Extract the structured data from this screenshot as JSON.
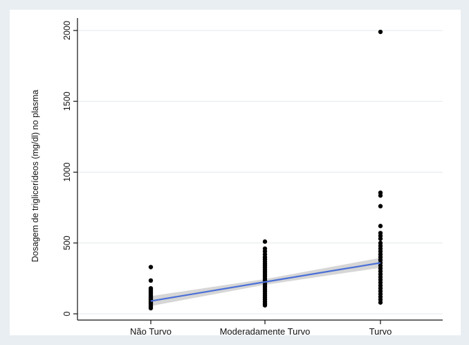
{
  "chart_data": {
    "type": "scatter",
    "ylabel": "Dosagem de triglicerídeos (mg/dl) no plasma",
    "xlabel": "",
    "categories": [
      "Não Turvo",
      "Moderadamente Turvo",
      "Turvo"
    ],
    "yticks": [
      0,
      500,
      1000,
      1500,
      2000
    ],
    "ytick_labels": [
      "0",
      "500",
      "1000",
      "1500",
      "2000"
    ],
    "ylim": [
      -50,
      2080
    ],
    "grid": true,
    "points": [
      {
        "x": "Não Turvo",
        "y": 330
      },
      {
        "x": "Não Turvo",
        "y": 235
      },
      {
        "x": "Não Turvo",
        "y": 180
      },
      {
        "x": "Não Turvo",
        "y": 170
      },
      {
        "x": "Não Turvo",
        "y": 160
      },
      {
        "x": "Não Turvo",
        "y": 150
      },
      {
        "x": "Não Turvo",
        "y": 140
      },
      {
        "x": "Não Turvo",
        "y": 130
      },
      {
        "x": "Não Turvo",
        "y": 120
      },
      {
        "x": "Não Turvo",
        "y": 110
      },
      {
        "x": "Não Turvo",
        "y": 100
      },
      {
        "x": "Não Turvo",
        "y": 90
      },
      {
        "x": "Não Turvo",
        "y": 80
      },
      {
        "x": "Não Turvo",
        "y": 70
      },
      {
        "x": "Não Turvo",
        "y": 60
      },
      {
        "x": "Não Turvo",
        "y": 50
      },
      {
        "x": "Não Turvo",
        "y": 40
      },
      {
        "x": "Moderadamente Turvo",
        "y": 510
      },
      {
        "x": "Moderadamente Turvo",
        "y": 460
      },
      {
        "x": "Moderadamente Turvo",
        "y": 440
      },
      {
        "x": "Moderadamente Turvo",
        "y": 420
      },
      {
        "x": "Moderadamente Turvo",
        "y": 400
      },
      {
        "x": "Moderadamente Turvo",
        "y": 385
      },
      {
        "x": "Moderadamente Turvo",
        "y": 370
      },
      {
        "x": "Moderadamente Turvo",
        "y": 355
      },
      {
        "x": "Moderadamente Turvo",
        "y": 340
      },
      {
        "x": "Moderadamente Turvo",
        "y": 325
      },
      {
        "x": "Moderadamente Turvo",
        "y": 310
      },
      {
        "x": "Moderadamente Turvo",
        "y": 295
      },
      {
        "x": "Moderadamente Turvo",
        "y": 280
      },
      {
        "x": "Moderadamente Turvo",
        "y": 265
      },
      {
        "x": "Moderadamente Turvo",
        "y": 250
      },
      {
        "x": "Moderadamente Turvo",
        "y": 235
      },
      {
        "x": "Moderadamente Turvo",
        "y": 220
      },
      {
        "x": "Moderadamente Turvo",
        "y": 205
      },
      {
        "x": "Moderadamente Turvo",
        "y": 190
      },
      {
        "x": "Moderadamente Turvo",
        "y": 175
      },
      {
        "x": "Moderadamente Turvo",
        "y": 160
      },
      {
        "x": "Moderadamente Turvo",
        "y": 145
      },
      {
        "x": "Moderadamente Turvo",
        "y": 130
      },
      {
        "x": "Moderadamente Turvo",
        "y": 115
      },
      {
        "x": "Moderadamente Turvo",
        "y": 100
      },
      {
        "x": "Moderadamente Turvo",
        "y": 85
      },
      {
        "x": "Moderadamente Turvo",
        "y": 70
      },
      {
        "x": "Moderadamente Turvo",
        "y": 60
      },
      {
        "x": "Turvo",
        "y": 1990
      },
      {
        "x": "Turvo",
        "y": 855
      },
      {
        "x": "Turvo",
        "y": 835
      },
      {
        "x": "Turvo",
        "y": 760
      },
      {
        "x": "Turvo",
        "y": 620
      },
      {
        "x": "Turvo",
        "y": 570
      },
      {
        "x": "Turvo",
        "y": 550
      },
      {
        "x": "Turvo",
        "y": 530
      },
      {
        "x": "Turvo",
        "y": 500
      },
      {
        "x": "Turvo",
        "y": 480
      },
      {
        "x": "Turvo",
        "y": 460
      },
      {
        "x": "Turvo",
        "y": 440
      },
      {
        "x": "Turvo",
        "y": 420
      },
      {
        "x": "Turvo",
        "y": 400
      },
      {
        "x": "Turvo",
        "y": 380
      },
      {
        "x": "Turvo",
        "y": 360
      },
      {
        "x": "Turvo",
        "y": 340
      },
      {
        "x": "Turvo",
        "y": 320
      },
      {
        "x": "Turvo",
        "y": 300
      },
      {
        "x": "Turvo",
        "y": 280
      },
      {
        "x": "Turvo",
        "y": 260
      },
      {
        "x": "Turvo",
        "y": 240
      },
      {
        "x": "Turvo",
        "y": 220
      },
      {
        "x": "Turvo",
        "y": 200
      },
      {
        "x": "Turvo",
        "y": 180
      },
      {
        "x": "Turvo",
        "y": 160
      },
      {
        "x": "Turvo",
        "y": 140
      },
      {
        "x": "Turvo",
        "y": 120
      },
      {
        "x": "Turvo",
        "y": 100
      },
      {
        "x": "Turvo",
        "y": 80
      }
    ],
    "fit_line": {
      "x": [
        "Não Turvo",
        "Moderadamente Turvo",
        "Turvo"
      ],
      "y": [
        90,
        225,
        360
      ],
      "ci_lower": [
        55,
        205,
        325
      ],
      "ci_upper": [
        125,
        245,
        395
      ]
    },
    "colors": {
      "points": "#000000",
      "fit_line": "#4a6fd6",
      "ci_band": "#c8c8c8",
      "grid": "#e3e8ec",
      "page_background": "#e9eef2",
      "plot_background": "#ffffff"
    }
  }
}
